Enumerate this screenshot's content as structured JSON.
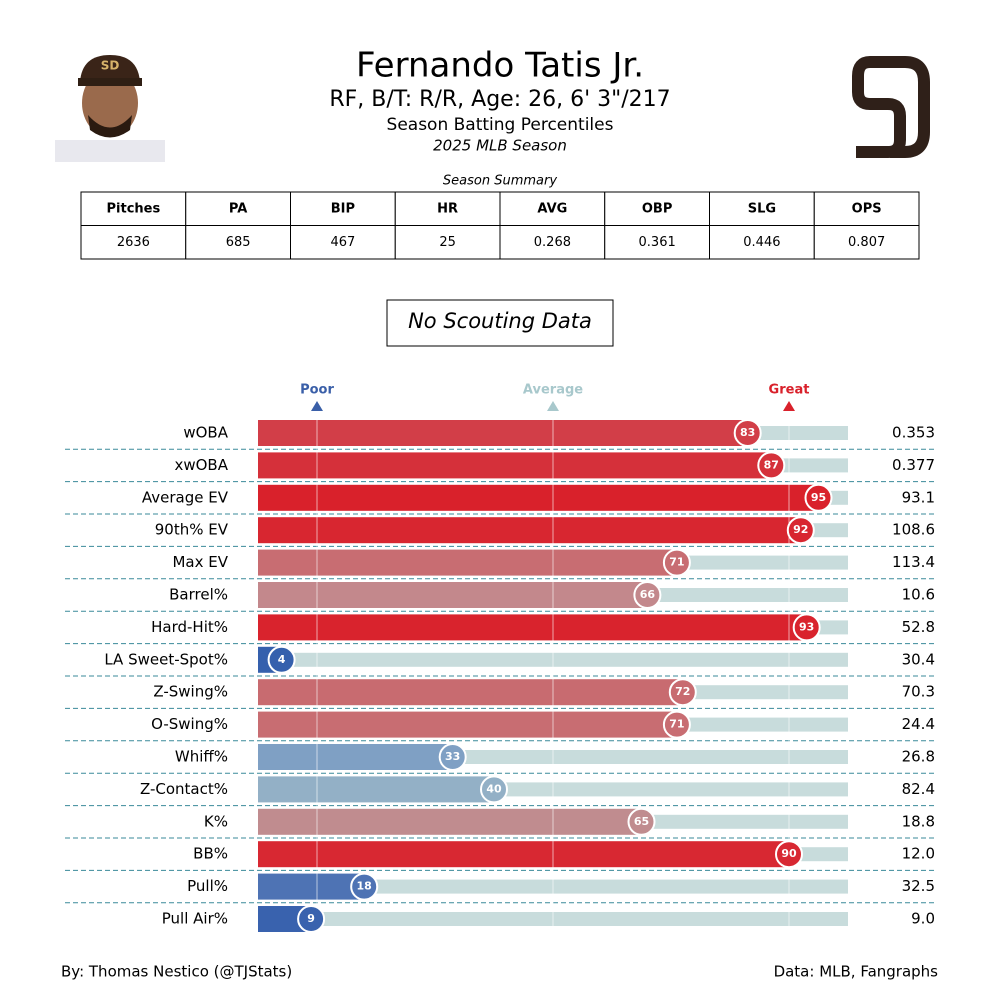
{
  "header": {
    "name": "Fernando Tatis Jr.",
    "info": "RF, B/T: R/R, Age: 26, 6' 3\"/217",
    "subtitle": "Season Batting Percentiles",
    "season": "2025 MLB Season"
  },
  "summary": {
    "title": "Season Summary",
    "columns": [
      "Pitches",
      "PA",
      "BIP",
      "HR",
      "AVG",
      "OBP",
      "SLG",
      "OPS"
    ],
    "rows": [
      [
        "2636",
        "685",
        "467",
        "25",
        "0.268",
        "0.361",
        "0.446",
        "0.807"
      ]
    ]
  },
  "scouting": "No Scouting Data",
  "chart_data": {
    "type": "bar",
    "orientation": "horizontal",
    "categories": [
      "wOBA",
      "xwOBA",
      "Average EV",
      "90th% EV",
      "Max EV",
      "Barrel%",
      "Hard-Hit%",
      "LA Sweet-Spot%",
      "Z-Swing%",
      "O-Swing%",
      "Whiff%",
      "Z-Contact%",
      "K%",
      "BB%",
      "Pull%",
      "Pull Air%"
    ],
    "values": [
      83,
      87,
      95,
      92,
      71,
      66,
      93,
      4,
      72,
      71,
      33,
      40,
      65,
      90,
      18,
      9
    ],
    "colors": [
      "#d23e48",
      "#d5303a",
      "#d9212b",
      "#d82630",
      "#c86d72",
      "#c3888c",
      "#d9232d",
      "#3560ad",
      "#c86b70",
      "#c86d72",
      "#7fa0c4",
      "#93b0c6",
      "#c08c8f",
      "#d82832",
      "#4e73b4",
      "#3962ae"
    ],
    "stats": [
      "0.353",
      "0.377",
      "93.1",
      "108.6",
      "113.4",
      "10.6",
      "52.8",
      "30.4",
      "70.3",
      "24.4",
      "26.8",
      "82.4",
      "18.8",
      "12.0",
      "32.5",
      "9.0"
    ],
    "xlim": [
      0,
      100
    ],
    "xticks": [
      {
        "value": 10,
        "label": "Poor"
      },
      {
        "value": 50,
        "label": "Average"
      },
      {
        "value": 90,
        "label": "Great"
      }
    ],
    "xtick_colors": [
      "#3a5fa8",
      "#a8c8cc",
      "#d9212b"
    ],
    "track_color": "#c8dcdc"
  },
  "footer": {
    "left": "By: Thomas Nestico (@TJStats)",
    "right": "Data: MLB, Fangraphs"
  }
}
